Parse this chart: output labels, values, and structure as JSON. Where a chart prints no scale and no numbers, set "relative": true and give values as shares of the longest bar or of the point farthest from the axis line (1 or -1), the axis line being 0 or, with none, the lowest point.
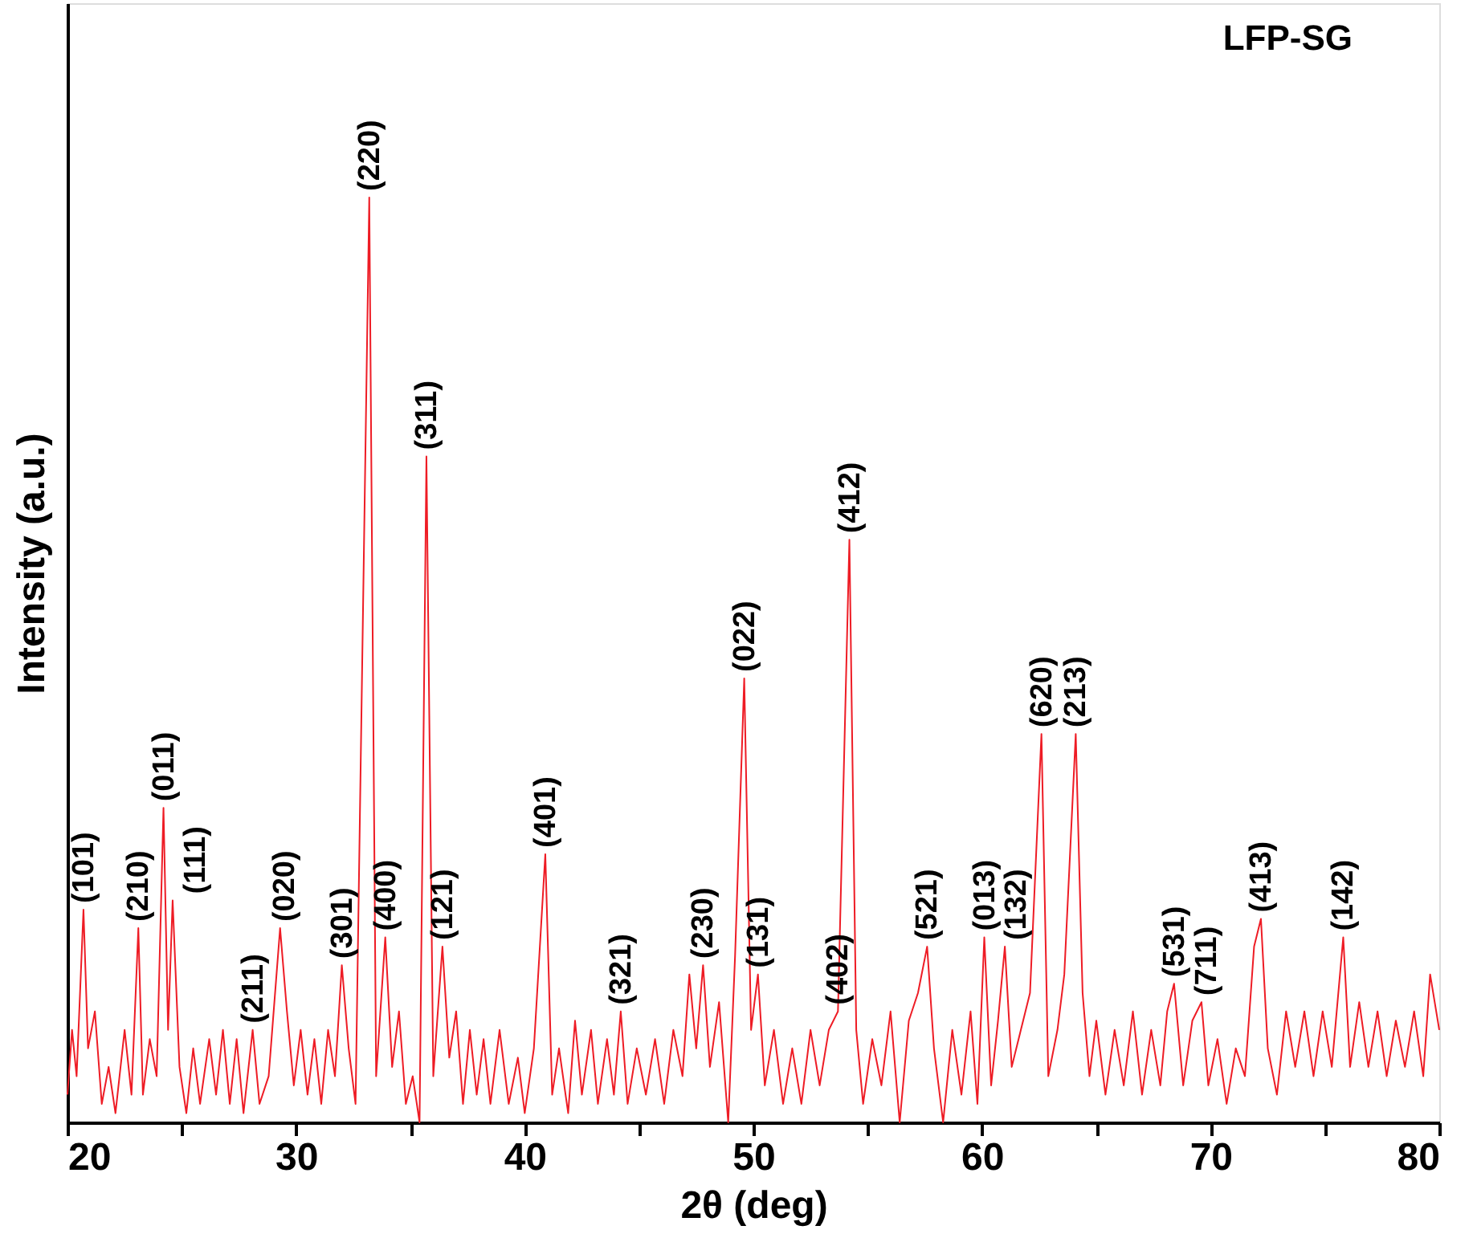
{
  "chart_data": {
    "type": "line",
    "relative": true,
    "xlabel": "2θ (deg)",
    "ylabel": "Intensity (a.u.)",
    "xlim": [
      20,
      80
    ],
    "xticks": [
      20,
      {
        "value": 25,
        "label": null
      },
      30,
      {
        "value": 35,
        "label": null
      },
      40,
      {
        "value": 45,
        "label": null
      },
      50,
      {
        "value": 55,
        "label": null
      },
      60,
      {
        "value": 65,
        "label": null
      },
      70,
      {
        "value": 75,
        "label": null
      },
      80
    ],
    "tick_labels": "x",
    "grid": false,
    "marker": "none",
    "line_style": "solid",
    "x": [
      20.0,
      20.2,
      20.4,
      20.7,
      20.9,
      21.2,
      21.5,
      21.8,
      22.1,
      22.5,
      22.8,
      23.1,
      23.3,
      23.6,
      23.9,
      24.2,
      24.4,
      24.6,
      24.9,
      25.2,
      25.5,
      25.8,
      26.2,
      26.5,
      26.8,
      27.1,
      27.4,
      27.7,
      28.1,
      28.4,
      28.8,
      29.3,
      29.6,
      29.9,
      30.2,
      30.5,
      30.8,
      31.1,
      31.4,
      31.7,
      32.0,
      32.3,
      32.6,
      33.2,
      33.5,
      33.9,
      34.2,
      34.5,
      34.8,
      35.1,
      35.4,
      35.7,
      36.0,
      36.4,
      36.7,
      37.0,
      37.3,
      37.6,
      37.9,
      38.2,
      38.5,
      38.9,
      39.3,
      39.7,
      40.0,
      40.4,
      40.9,
      41.2,
      41.5,
      41.9,
      42.2,
      42.5,
      42.9,
      43.2,
      43.6,
      43.9,
      44.2,
      44.5,
      44.9,
      45.3,
      45.7,
      46.1,
      46.5,
      46.9,
      47.2,
      47.5,
      47.8,
      48.1,
      48.5,
      48.9,
      49.2,
      49.6,
      49.9,
      50.2,
      50.5,
      50.9,
      51.3,
      51.7,
      52.1,
      52.5,
      52.9,
      53.3,
      53.7,
      54.2,
      54.5,
      54.8,
      55.2,
      55.6,
      56.0,
      56.4,
      56.8,
      57.2,
      57.6,
      57.9,
      58.3,
      58.7,
      59.1,
      59.5,
      59.8,
      60.1,
      60.4,
      60.7,
      61.0,
      61.3,
      61.7,
      62.1,
      62.6,
      62.9,
      63.3,
      63.6,
      64.1,
      64.4,
      64.7,
      65.0,
      65.4,
      65.8,
      66.2,
      66.6,
      67.0,
      67.4,
      67.8,
      68.1,
      68.4,
      68.8,
      69.2,
      69.6,
      69.9,
      70.3,
      70.7,
      71.1,
      71.5,
      71.9,
      72.2,
      72.5,
      72.9,
      73.3,
      73.7,
      74.1,
      74.5,
      74.9,
      75.3,
      75.8,
      76.1,
      76.5,
      76.9,
      77.3,
      77.7,
      78.1,
      78.5,
      78.9,
      79.3,
      79.6,
      80.0
    ],
    "series": [
      {
        "color": "#ee1c25",
        "values": [
          0.03,
          0.1,
          0.05,
          0.23,
          0.08,
          0.12,
          0.02,
          0.06,
          0.01,
          0.1,
          0.03,
          0.21,
          0.03,
          0.09,
          0.05,
          0.34,
          0.1,
          0.24,
          0.06,
          0.01,
          0.08,
          0.02,
          0.09,
          0.03,
          0.1,
          0.02,
          0.09,
          0.01,
          0.1,
          0.02,
          0.05,
          0.21,
          0.12,
          0.04,
          0.1,
          0.03,
          0.09,
          0.02,
          0.1,
          0.05,
          0.17,
          0.08,
          0.02,
          1.0,
          0.05,
          0.2,
          0.06,
          0.12,
          0.02,
          0.05,
          0.0,
          0.72,
          0.05,
          0.19,
          0.07,
          0.12,
          0.02,
          0.1,
          0.03,
          0.09,
          0.02,
          0.1,
          0.02,
          0.07,
          0.01,
          0.08,
          0.29,
          0.03,
          0.08,
          0.01,
          0.11,
          0.03,
          0.1,
          0.02,
          0.09,
          0.03,
          0.12,
          0.02,
          0.08,
          0.03,
          0.09,
          0.02,
          0.1,
          0.05,
          0.16,
          0.08,
          0.17,
          0.06,
          0.13,
          0.0,
          0.18,
          0.48,
          0.1,
          0.16,
          0.04,
          0.1,
          0.02,
          0.08,
          0.02,
          0.1,
          0.04,
          0.1,
          0.12,
          0.63,
          0.1,
          0.02,
          0.09,
          0.04,
          0.12,
          0.0,
          0.11,
          0.14,
          0.19,
          0.08,
          0.0,
          0.1,
          0.03,
          0.12,
          0.02,
          0.2,
          0.04,
          0.11,
          0.19,
          0.06,
          0.1,
          0.14,
          0.42,
          0.05,
          0.1,
          0.16,
          0.42,
          0.14,
          0.05,
          0.11,
          0.03,
          0.1,
          0.04,
          0.12,
          0.03,
          0.1,
          0.04,
          0.12,
          0.15,
          0.04,
          0.11,
          0.13,
          0.04,
          0.09,
          0.02,
          0.08,
          0.05,
          0.19,
          0.22,
          0.08,
          0.03,
          0.12,
          0.06,
          0.12,
          0.05,
          0.12,
          0.06,
          0.2,
          0.06,
          0.13,
          0.06,
          0.12,
          0.05,
          0.11,
          0.06,
          0.12,
          0.05,
          0.16,
          0.1
        ]
      }
    ],
    "annotations": [
      "LFP-SG",
      {
        "text": "(101)",
        "x": 20.7,
        "y": 0.23
      },
      {
        "text": "(210)",
        "x": 23.1,
        "y": 0.21
      },
      {
        "text": "(011)",
        "x": 24.2,
        "y": 0.34
      },
      {
        "text": "(111)",
        "x": 24.6,
        "y": 0.24
      },
      {
        "text": "(211)",
        "x": 28.1,
        "y": 0.1
      },
      {
        "text": "(020)",
        "x": 29.3,
        "y": 0.21
      },
      {
        "text": "(301)",
        "x": 32.0,
        "y": 0.17
      },
      {
        "text": "(220)",
        "x": 33.2,
        "y": 1.0
      },
      {
        "text": "(400)",
        "x": 33.9,
        "y": 0.2
      },
      {
        "text": "(311)",
        "x": 35.7,
        "y": 0.72
      },
      {
        "text": "(121)",
        "x": 36.4,
        "y": 0.19
      },
      {
        "text": "(401)",
        "x": 40.9,
        "y": 0.29
      },
      {
        "text": "(321)",
        "x": 44.2,
        "y": 0.12
      },
      {
        "text": "(230)",
        "x": 47.8,
        "y": 0.17
      },
      {
        "text": "(022)",
        "x": 49.6,
        "y": 0.48
      },
      {
        "text": "(131)",
        "x": 50.2,
        "y": 0.16
      },
      {
        "text": "(402)",
        "x": 53.7,
        "y": 0.12
      },
      {
        "text": "(412)",
        "x": 54.2,
        "y": 0.63
      },
      {
        "text": "(521)",
        "x": 57.6,
        "y": 0.19
      },
      {
        "text": "(013)",
        "x": 60.1,
        "y": 0.2
      },
      {
        "text": "(132)",
        "x": 61.0,
        "y": 0.19
      },
      {
        "text": "(620)",
        "x": 62.6,
        "y": 0.42
      },
      {
        "text": "(213)",
        "x": 64.1,
        "y": 0.42
      },
      {
        "text": "(531)",
        "x": 68.4,
        "y": 0.15
      },
      {
        "text": "(711)",
        "x": 69.6,
        "y": 0.13
      },
      {
        "text": "(413)",
        "x": 72.2,
        "y": 0.22
      },
      {
        "text": "(142)",
        "x": 75.8,
        "y": 0.2
      }
    ]
  }
}
